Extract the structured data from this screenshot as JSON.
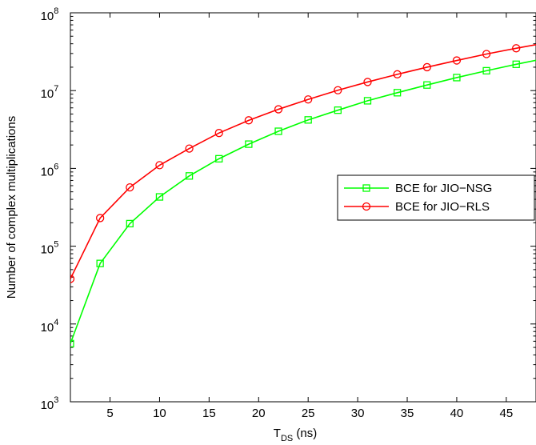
{
  "chart_data": {
    "type": "line",
    "title": "",
    "xlabel_main": "T",
    "xlabel_sub": "DS",
    "xlabel_unit": " (ns)",
    "ylabel": "Number of complex multiplications",
    "xlim": [
      1,
      48
    ],
    "ylim_exp": [
      3,
      8
    ],
    "y_scale": "log",
    "grid": false,
    "legend_position": "right",
    "x_ticks": [
      5,
      10,
      15,
      20,
      25,
      30,
      35,
      40,
      45
    ],
    "y_ticks": [
      {
        "exp": 3,
        "base": "10",
        "sup": "3"
      },
      {
        "exp": 4,
        "base": "10",
        "sup": "4"
      },
      {
        "exp": 5,
        "base": "10",
        "sup": "5"
      },
      {
        "exp": 6,
        "base": "10",
        "sup": "6"
      },
      {
        "exp": 7,
        "base": "10",
        "sup": "7"
      },
      {
        "exp": 8,
        "base": "10",
        "sup": "8"
      }
    ],
    "x": [
      1,
      4,
      7,
      10,
      13,
      16,
      19,
      22,
      25,
      28,
      31,
      34,
      37,
      40,
      43,
      46,
      49
    ],
    "series": [
      {
        "name": "BCE for JIO−NSG",
        "color": "#00ff00",
        "marker": "square",
        "values": [
          5600,
          60000,
          195000,
          430000,
          800000,
          1330000,
          2050000,
          3000000,
          4200000,
          5600000,
          7400000,
          9400000,
          11800000,
          14700000,
          18000000,
          21800000,
          26000000
        ]
      },
      {
        "name": "BCE for JIO−RLS",
        "color": "#ff0000",
        "marker": "circle",
        "values": [
          38000,
          230000,
          570000,
          1100000,
          1800000,
          2850000,
          4150000,
          5750000,
          7700000,
          10100000,
          12900000,
          16200000,
          20000000,
          24400000,
          29500000,
          35000000,
          41000000
        ]
      }
    ]
  }
}
